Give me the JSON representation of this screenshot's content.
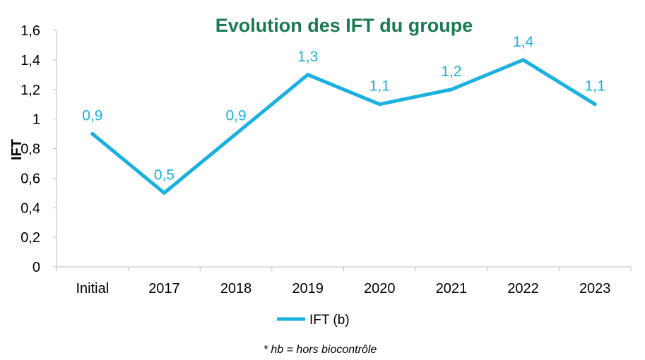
{
  "footnote": "* hb = hors biocontrôle",
  "chart_data": {
    "type": "line",
    "title": "Evolution des IFT du groupe",
    "xlabel": "",
    "ylabel": "IFT",
    "categories": [
      "Initial",
      "2017",
      "2018",
      "2019",
      "2020",
      "2021",
      "2022",
      "2023"
    ],
    "series": [
      {
        "name": "IFT (b)",
        "values": [
          0.9,
          0.5,
          0.9,
          1.3,
          1.1,
          1.2,
          1.4,
          1.1
        ],
        "labels": [
          "0,9",
          "0,5",
          "0,9",
          "1,3",
          "1,1",
          "1,2",
          "1,4",
          "1,1"
        ],
        "color": "#1ab0e0"
      }
    ],
    "ylim": [
      0,
      1.6
    ],
    "yticks": [
      "0",
      "0,2",
      "0,4",
      "0,6",
      "0,8",
      "1",
      "1,2",
      "1,4",
      "1,6"
    ],
    "grid": false,
    "legend": "bottom",
    "title_color": "#1a7a52"
  }
}
